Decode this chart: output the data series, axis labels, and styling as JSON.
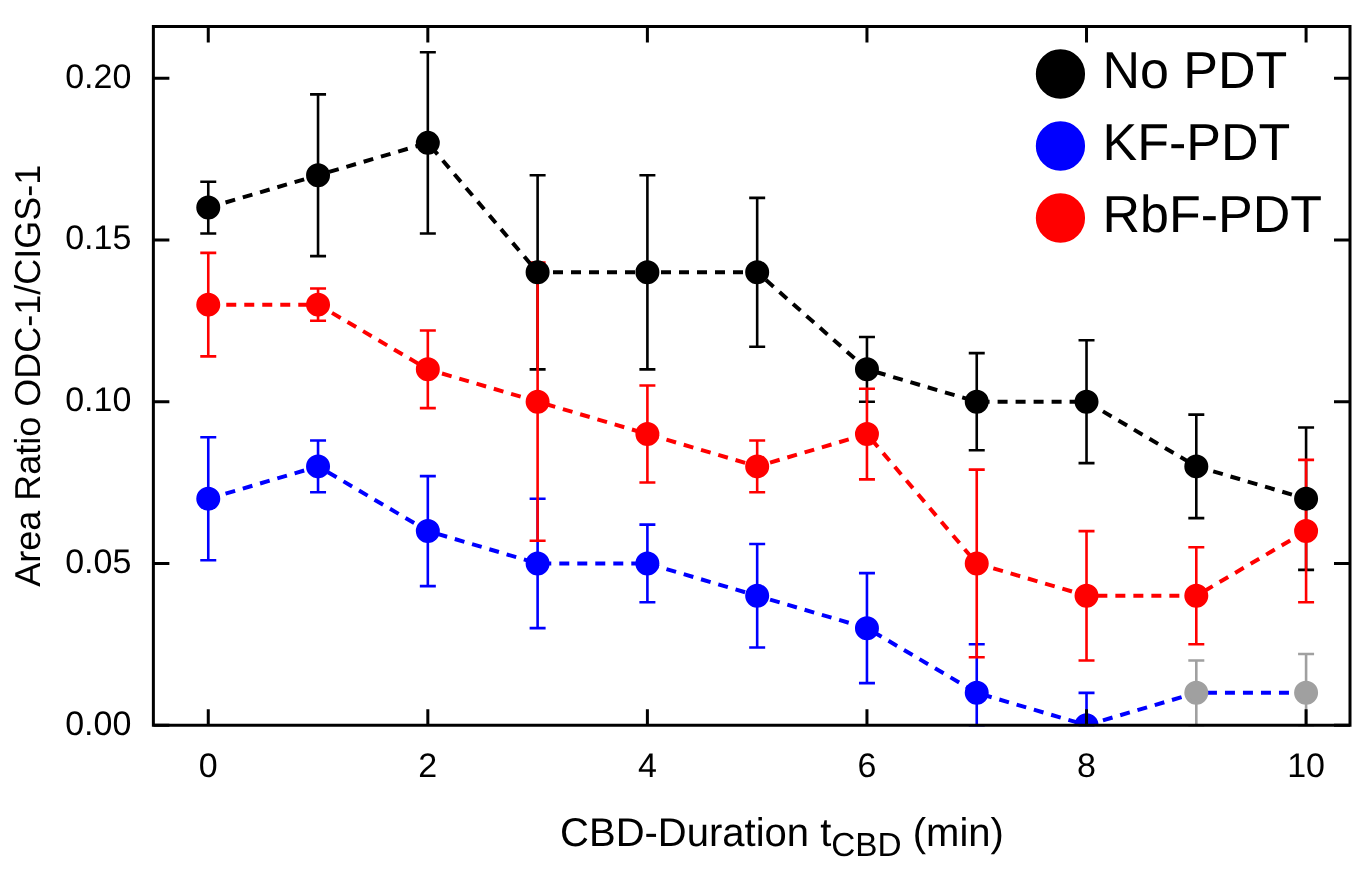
{
  "chart_data": {
    "type": "line",
    "xlabel": "CBD-Duration t$_{CBD}$ (min)",
    "ylabel": "Area Ratio ODC-1/CIGS-1",
    "x": [
      0,
      1,
      2,
      3,
      4,
      5,
      6,
      7,
      8,
      9,
      10
    ],
    "xlim": [
      -0.5,
      10.4
    ],
    "xticks": [
      0,
      2,
      4,
      6,
      8,
      10
    ],
    "ylim": [
      0,
      0.216
    ],
    "yticks": [
      {
        "value": 0,
        "label": "0.00"
      },
      {
        "value": 0.05,
        "label": "0.05"
      },
      {
        "value": 0.1,
        "label": "0.10"
      },
      {
        "value": 0.15,
        "label": "0.15"
      },
      {
        "value": 0.2,
        "label": "0.20"
      }
    ],
    "legend": "top right",
    "marker": "circle",
    "line_style": "dashed",
    "series": [
      {
        "name": "No PDT",
        "color": "#000000",
        "values": [
          0.16,
          0.17,
          0.18,
          0.14,
          0.14,
          0.14,
          0.11,
          0.1,
          0.1,
          0.08,
          0.07
        ],
        "errors": [
          0.008,
          0.025,
          0.028,
          0.03,
          0.03,
          0.023,
          0.01,
          0.015,
          0.019,
          0.016,
          0.022
        ]
      },
      {
        "name": "KF-PDT",
        "color": "#0000ff",
        "colors": [
          "#0000ff",
          "#0000ff",
          "#0000ff",
          "#0000ff",
          "#0000ff",
          "#0000ff",
          "#0000ff",
          "#0000ff",
          "#0000ff",
          "#a0a0a0",
          "#a0a0a0"
        ],
        "values": [
          0.07,
          0.08,
          0.06,
          0.05,
          0.05,
          0.04,
          0.03,
          0.01,
          0,
          0.01,
          0.01
        ],
        "errors": [
          0.019,
          0.008,
          0.017,
          0.02,
          0.012,
          0.016,
          0.017,
          [
            0,
            0.025
          ],
          [
            0,
            0.01
          ],
          [
            0,
            0.02
          ],
          [
            0,
            0.022
          ]
        ]
      },
      {
        "name": "RbF-PDT",
        "color": "#ff0000",
        "values": [
          0.13,
          0.13,
          0.11,
          0.1,
          0.09,
          0.08,
          0.09,
          0.05,
          0.04,
          0.04,
          0.06
        ],
        "errors": [
          0.016,
          0.005,
          0.012,
          0.043,
          0.015,
          0.008,
          0.014,
          0.029,
          0.02,
          0.015,
          0.022
        ]
      }
    ]
  }
}
